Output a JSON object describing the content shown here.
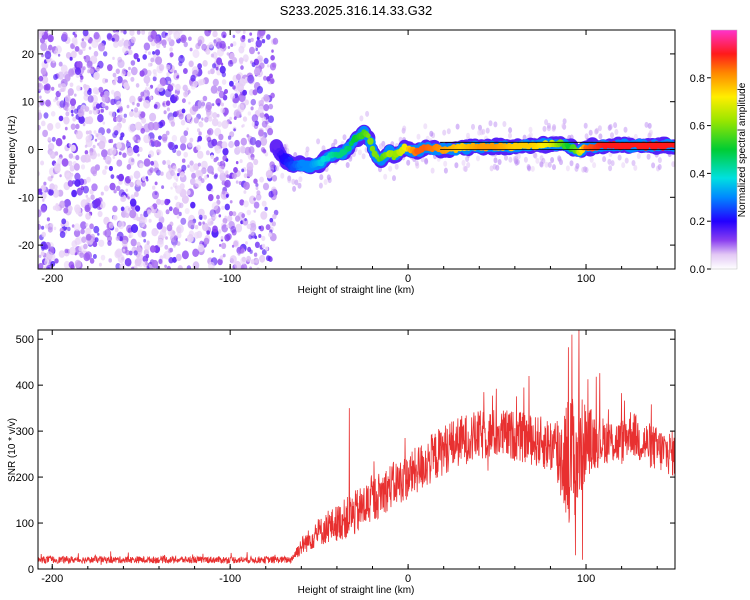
{
  "title": "S233.2025.316.14.33.G32",
  "chart_data": [
    {
      "type": "heatmap",
      "name": "spectrogram",
      "xlabel": "Height of straight line (km)",
      "ylabel": "Frequency (Hz)",
      "xlim": [
        -208,
        150
      ],
      "ylim": [
        -25,
        25
      ],
      "xticks": [
        {
          "v": -200,
          "label": "-200"
        },
        {
          "v": -100,
          "label": "-100"
        },
        {
          "v": 0,
          "label": "0"
        },
        {
          "v": 100,
          "label": "100"
        }
      ],
      "yticks": [
        {
          "v": -20,
          "label": "-20"
        },
        {
          "v": -10,
          "label": "-10"
        },
        {
          "v": 0,
          "label": "0"
        },
        {
          "v": 10,
          "label": "10"
        },
        {
          "v": 20,
          "label": "20"
        }
      ],
      "noise_region_x": [
        -208,
        -74
      ],
      "reference_line_freq": [
        0,
        1.5
      ],
      "reference_line_x": [
        18,
        150
      ],
      "ridge_x": [
        -74,
        -70,
        -65,
        -60,
        -55,
        -50,
        -45,
        -40,
        -35,
        -30,
        -25,
        -22,
        -20,
        -18,
        -15,
        -12,
        -10,
        -8,
        -5,
        -2,
        0,
        5,
        10,
        20,
        30,
        40,
        50,
        60,
        70,
        80,
        85,
        90,
        95,
        100,
        110,
        120,
        130,
        140,
        150
      ],
      "ridge_freq": [
        0.5,
        -2,
        -3.5,
        -3,
        -3.5,
        -3,
        -1.5,
        -1,
        -0.5,
        2,
        3.5,
        2.5,
        0,
        -1.5,
        -2,
        -1,
        -0.5,
        -1.5,
        -0.5,
        0.3,
        0,
        -0.5,
        0.5,
        0,
        0.3,
        0.6,
        0.5,
        0.6,
        0.8,
        1,
        1.2,
        0.8,
        -0.5,
        0.5,
        0.8,
        0.8,
        0.8,
        0.8,
        0.8
      ],
      "ridge_amplitude": [
        0.15,
        0.2,
        0.25,
        0.3,
        0.3,
        0.35,
        0.4,
        0.45,
        0.45,
        0.5,
        0.55,
        0.6,
        0.6,
        0.6,
        0.55,
        0.6,
        0.65,
        0.6,
        0.65,
        0.7,
        0.75,
        0.85,
        0.85,
        0.8,
        0.75,
        0.8,
        0.8,
        0.75,
        0.75,
        0.7,
        0.6,
        0.5,
        0.6,
        0.85,
        0.9,
        0.9,
        0.9,
        0.9,
        0.9
      ]
    },
    {
      "type": "line",
      "name": "snr",
      "xlabel": "Height of straight line (km)",
      "ylabel": "SNR (10 * v/v)",
      "xlim": [
        -208,
        150
      ],
      "ylim": [
        0,
        520
      ],
      "line_color": "#e83030",
      "xticks": [
        {
          "v": -200,
          "label": "-200"
        },
        {
          "v": -100,
          "label": "-100"
        },
        {
          "v": 0,
          "label": "0"
        },
        {
          "v": 100,
          "label": "100"
        }
      ],
      "yticks": [
        {
          "v": 0,
          "label": "0"
        },
        {
          "v": 100,
          "label": "100"
        },
        {
          "v": 200,
          "label": "200"
        },
        {
          "v": 300,
          "label": "300"
        },
        {
          "v": 400,
          "label": "400"
        },
        {
          "v": 500,
          "label": "500"
        }
      ],
      "baseline_x": [
        -208,
        -140,
        -100,
        -66,
        -60,
        -50,
        -40,
        -35,
        -30,
        -20,
        -10,
        0,
        10,
        20,
        30,
        40,
        50,
        60,
        70,
        80,
        85,
        90,
        95,
        100,
        110,
        120,
        125,
        130,
        140,
        150
      ],
      "baseline_y": [
        20,
        20,
        20,
        20,
        50,
        80,
        100,
        110,
        120,
        150,
        180,
        200,
        230,
        260,
        280,
        290,
        295,
        290,
        280,
        270,
        250,
        240,
        250,
        280,
        280,
        275,
        300,
        280,
        260,
        250
      ],
      "spread_y": [
        15,
        15,
        15,
        15,
        40,
        60,
        80,
        90,
        100,
        100,
        100,
        100,
        110,
        110,
        110,
        110,
        110,
        110,
        110,
        120,
        200,
        280,
        280,
        160,
        100,
        100,
        100,
        100,
        100,
        100
      ],
      "spikes": [
        {
          "x": -33,
          "y": 350
        },
        {
          "x": 65,
          "y": 395
        },
        {
          "x": 68,
          "y": 420
        },
        {
          "x": 92,
          "y": 510
        },
        {
          "x": 96,
          "y": 520
        },
        {
          "x": 94,
          "y": 30
        },
        {
          "x": 98,
          "y": 20
        }
      ]
    }
  ],
  "colorbar": {
    "label": "Normalized spectral amplitude",
    "range": [
      0,
      1
    ],
    "ticks": [
      {
        "v": 0.0,
        "label": "0.0"
      },
      {
        "v": 0.2,
        "label": "0.2"
      },
      {
        "v": 0.4,
        "label": "0.4"
      },
      {
        "v": 0.6,
        "label": "0.6"
      },
      {
        "v": 0.8,
        "label": "0.8"
      }
    ]
  }
}
